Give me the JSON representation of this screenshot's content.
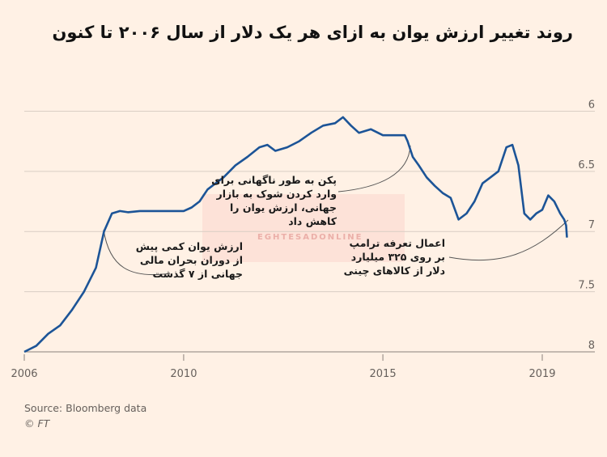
{
  "title": "روند تغییر ارزش یوان  به ازای هر یک دلار از سال ۲۰۰۶ تا کنون",
  "watermark": "EGHTESADONLINE",
  "source": "Source: Bloomberg data",
  "credit": "© FT",
  "annotations": [
    {
      "lines": [
        "ارزش یوان کمی پیش",
        "از دوران بحران مالی",
        "جهانی از ۷ گذشت"
      ]
    },
    {
      "lines": [
        "پکن به طور ناگهانی برای",
        "وارد کردن شوک به بازار",
        "جهانی، ارزش یوان را",
        "کاهش داد"
      ]
    },
    {
      "lines": [
        "اعمال تعرفه ترامپ",
        "بر روی ۳۲۵ میلیارد",
        "دلار از کالاهای چینی"
      ]
    }
  ],
  "colors": {
    "line": "#1c5497",
    "background": "#fff1e5",
    "grid": "#d9cec4",
    "axis_text": "#66605c"
  },
  "chart_data": {
    "type": "line",
    "x_axis": {
      "ticks": [
        2006,
        2010,
        2015,
        2019
      ],
      "range": [
        2006.0,
        2019.65
      ]
    },
    "y_axis": {
      "ticks": [
        6,
        6.5,
        7,
        7.5,
        8
      ],
      "range": [
        5.95,
        8.02
      ],
      "inverted": true,
      "position": "right"
    },
    "grid": true,
    "series": [
      {
        "x": [
          2006.0,
          2006.3,
          2006.6,
          2006.9,
          2007.2,
          2007.5,
          2007.8,
          2008.0,
          2008.2,
          2008.4,
          2008.6,
          2008.9,
          2009.3,
          2009.7,
          2010.0,
          2010.2,
          2010.4,
          2010.5,
          2010.6,
          2010.8,
          2011.0,
          2011.3,
          2011.6,
          2011.9,
          2012.1,
          2012.3,
          2012.6,
          2012.9,
          2013.2,
          2013.5,
          2013.8,
          2014.0,
          2014.2,
          2014.4,
          2014.7,
          2015.0,
          2015.3,
          2015.55,
          2015.62,
          2015.75,
          2015.9,
          2016.1,
          2016.3,
          2016.5,
          2016.7,
          2016.9,
          2017.1,
          2017.3,
          2017.5,
          2017.7,
          2017.9,
          2018.1,
          2018.25,
          2018.4,
          2018.55,
          2018.7,
          2018.85,
          2019.0,
          2019.15,
          2019.3,
          2019.45,
          2019.55,
          2019.6,
          2019.62
        ],
        "y": [
          8.0,
          7.95,
          7.85,
          7.78,
          7.65,
          7.5,
          7.3,
          7.0,
          6.85,
          6.83,
          6.84,
          6.83,
          6.83,
          6.83,
          6.83,
          6.8,
          6.75,
          6.7,
          6.65,
          6.6,
          6.55,
          6.45,
          6.38,
          6.3,
          6.28,
          6.33,
          6.3,
          6.25,
          6.18,
          6.12,
          6.1,
          6.05,
          6.12,
          6.18,
          6.15,
          6.2,
          6.2,
          6.2,
          6.25,
          6.38,
          6.45,
          6.55,
          6.62,
          6.68,
          6.72,
          6.9,
          6.85,
          6.75,
          6.6,
          6.55,
          6.5,
          6.3,
          6.28,
          6.45,
          6.85,
          6.9,
          6.85,
          6.82,
          6.7,
          6.75,
          6.85,
          6.9,
          6.95,
          7.05
        ]
      }
    ]
  }
}
